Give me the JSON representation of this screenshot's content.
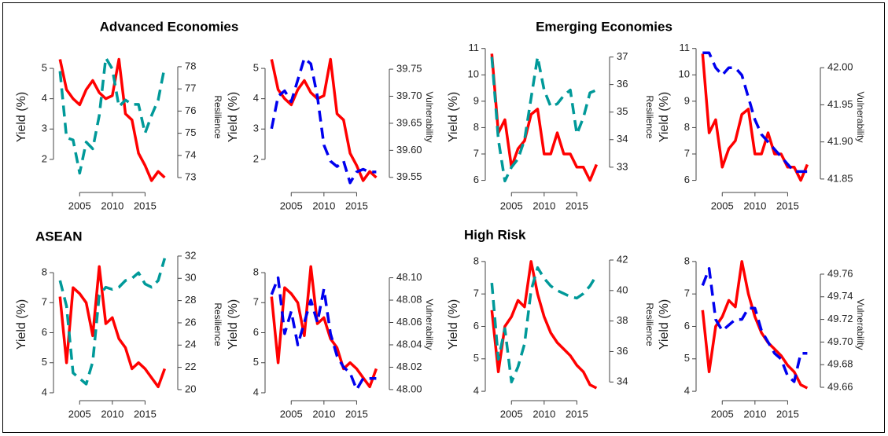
{
  "chart_data": [
    {
      "type": "line",
      "title": "Advanced Economies",
      "ylabel": "Yield (%)",
      "y2label": "Resilience",
      "x": [
        2002,
        2003,
        2004,
        2005,
        2006,
        2007,
        2008,
        2009,
        2010,
        2011,
        2012,
        2013,
        2014,
        2015,
        2016,
        2017,
        2018
      ],
      "xlim": [
        2001,
        2020
      ],
      "xticks": [
        2005,
        2010,
        2015
      ],
      "ylim": [
        0.96,
        5.83
      ],
      "yticks": [
        2,
        3,
        4,
        5
      ],
      "y2lim": [
        72.4,
        79.06
      ],
      "y2ticks": [
        73,
        74,
        75,
        76,
        77,
        78
      ],
      "series": [
        {
          "color": "#ff0000",
          "values": [
            5.3,
            4.3,
            4.0,
            3.8,
            4.3,
            4.6,
            4.2,
            4.0,
            4.1,
            5.3,
            3.5,
            3.3,
            2.2,
            1.8,
            1.3,
            1.6,
            1.4
          ]
        },
        {
          "color": "#009999",
          "axis": "y2",
          "dashed": true,
          "values": [
            77.8,
            74.8,
            74.7,
            73.2,
            74.6,
            74.3,
            75.8,
            78.4,
            77.9,
            76.2,
            76.5,
            76.3,
            76.3,
            75.0,
            75.8,
            76.5,
            78.0
          ]
        }
      ]
    },
    {
      "type": "line",
      "ylabel": "Yield (%)",
      "y2label": "Vulnerability",
      "x": [
        2002,
        2003,
        2004,
        2005,
        2006,
        2007,
        2008,
        2009,
        2010,
        2011,
        2012,
        2013,
        2014,
        2015,
        2016,
        2017,
        2018
      ],
      "xlim": [
        2001,
        2020
      ],
      "xticks": [
        2005,
        2010,
        2015
      ],
      "ylim": [
        0.96,
        5.83
      ],
      "yticks": [
        2,
        3,
        4,
        5
      ],
      "y2lim": [
        39.525,
        39.798
      ],
      "y2ticks": [
        {
          "value": 39.55,
          "label": "39.55"
        },
        {
          "value": 39.6,
          "label": "39.60"
        },
        {
          "value": 39.65,
          "label": "39.65"
        },
        {
          "value": 39.7,
          "label": "39.70"
        },
        {
          "value": 39.75,
          "label": "39.75"
        }
      ],
      "series": [
        {
          "color": "#ff0000",
          "values": [
            5.3,
            4.3,
            4.0,
            3.8,
            4.3,
            4.6,
            4.2,
            4.0,
            4.1,
            5.3,
            3.5,
            3.3,
            2.2,
            1.8,
            1.3,
            1.6,
            1.4
          ]
        },
        {
          "color": "#0000ee",
          "axis": "y2",
          "dashed": true,
          "values": [
            39.64,
            39.7,
            39.71,
            39.69,
            39.73,
            39.77,
            39.76,
            39.7,
            39.61,
            39.58,
            39.57,
            39.58,
            39.54,
            39.56,
            39.565,
            39.56,
            39.56
          ]
        }
      ]
    },
    {
      "type": "line",
      "title": "Emerging Economies",
      "ylabel": "Yield (%)",
      "y2label": "Resilience",
      "x": [
        2002,
        2003,
        2004,
        2005,
        2006,
        2007,
        2008,
        2009,
        2010,
        2011,
        2012,
        2013,
        2014,
        2015,
        2016,
        2017,
        2018
      ],
      "xlim": [
        2001,
        2020
      ],
      "xticks": [
        2005,
        2010,
        2015
      ],
      "ylim": [
        5.6,
        11.2
      ],
      "yticks": [
        6,
        7,
        8,
        9,
        10,
        11
      ],
      "y2lim": [
        32.14,
        37.5
      ],
      "y2ticks": [
        33,
        34,
        35,
        36,
        37
      ],
      "series": [
        {
          "color": "#ff0000",
          "values": [
            10.8,
            7.8,
            8.3,
            6.5,
            7.2,
            7.5,
            8.5,
            8.7,
            7.0,
            7.0,
            7.8,
            7.0,
            7.0,
            6.5,
            6.5,
            6.0,
            6.6
          ]
        },
        {
          "color": "#009999",
          "axis": "y2",
          "dashed": true,
          "values": [
            37.0,
            34.0,
            32.5,
            33.0,
            33.3,
            34.0,
            35.5,
            37.0,
            35.8,
            35.2,
            35.3,
            35.6,
            35.8,
            34.2,
            34.8,
            35.7,
            35.8
          ]
        }
      ]
    },
    {
      "type": "line",
      "ylabel": "Yield (%)",
      "y2label": "Vulnerability",
      "x": [
        2002,
        2003,
        2004,
        2005,
        2006,
        2007,
        2008,
        2009,
        2010,
        2011,
        2012,
        2013,
        2014,
        2015,
        2016,
        2017,
        2018
      ],
      "xlim": [
        2001,
        2020
      ],
      "xticks": [
        2005,
        2010,
        2015
      ],
      "ylim": [
        5.6,
        11.2
      ],
      "yticks": [
        6,
        7,
        8,
        9,
        10,
        11
      ],
      "y2lim": [
        41.834,
        42.033
      ],
      "y2ticks": [
        {
          "value": 41.85,
          "label": "41.85"
        },
        {
          "value": 41.9,
          "label": "41.90"
        },
        {
          "value": 41.95,
          "label": "41.95"
        },
        {
          "value": 42,
          "label": "42.00"
        }
      ],
      "series": [
        {
          "color": "#ff0000",
          "values": [
            10.8,
            7.8,
            8.3,
            6.5,
            7.2,
            7.5,
            8.5,
            8.7,
            7.0,
            7.0,
            7.8,
            7.0,
            7.0,
            6.5,
            6.5,
            6.0,
            6.6
          ]
        },
        {
          "color": "#0000ee",
          "axis": "y2",
          "dashed": true,
          "values": [
            42.02,
            42.02,
            42.0,
            41.99,
            42.0,
            42.0,
            41.99,
            41.96,
            41.93,
            41.91,
            41.9,
            41.89,
            41.88,
            41.87,
            41.86,
            41.86,
            41.86
          ]
        }
      ]
    },
    {
      "type": "line",
      "title": "ASEAN",
      "ylabel": "Yield (%)",
      "y2label": "Resilience",
      "x": [
        2002,
        2003,
        2004,
        2005,
        2006,
        2007,
        2008,
        2009,
        2010,
        2011,
        2012,
        2013,
        2014,
        2015,
        2016,
        2017,
        2018
      ],
      "xlim": [
        2001,
        2020
      ],
      "xticks": [
        2005,
        2010,
        2015
      ],
      "ylim": [
        3.79,
        8.76
      ],
      "yticks": [
        4,
        5,
        6,
        7,
        8
      ],
      "y2lim": [
        19.15,
        32.56
      ],
      "y2ticks": [
        20,
        22,
        24,
        26,
        28,
        30,
        32
      ],
      "series": [
        {
          "color": "#ff0000",
          "values": [
            7.2,
            5.0,
            7.5,
            7.3,
            7.0,
            5.9,
            8.2,
            6.3,
            6.5,
            5.8,
            5.5,
            4.8,
            5.0,
            4.8,
            4.5,
            4.2,
            4.8
          ]
        },
        {
          "color": "#009999",
          "axis": "y2",
          "dashed": true,
          "values": [
            29.8,
            27.5,
            21.5,
            21.0,
            20.5,
            22.5,
            28.5,
            29.2,
            29.0,
            29.2,
            29.8,
            30.0,
            30.5,
            29.5,
            29.2,
            29.8,
            31.8
          ]
        }
      ]
    },
    {
      "type": "line",
      "ylabel": "Yield (%)",
      "y2label": "Vulnerability",
      "x": [
        2002,
        2003,
        2004,
        2005,
        2006,
        2007,
        2008,
        2009,
        2010,
        2011,
        2012,
        2013,
        2014,
        2015,
        2016,
        2017,
        2018
      ],
      "xlim": [
        2001,
        2020
      ],
      "xticks": [
        2005,
        2010,
        2015
      ],
      "ylim": [
        3.79,
        8.76
      ],
      "yticks": [
        4,
        5,
        6,
        7,
        8
      ],
      "y2lim": [
        47.9915,
        48.125
      ],
      "y2ticks": [
        {
          "value": 48,
          "label": "48.00"
        },
        {
          "value": 48.02,
          "label": "48.02"
        },
        {
          "value": 48.04,
          "label": "48.04"
        },
        {
          "value": 48.06,
          "label": "48.06"
        },
        {
          "value": 48.08,
          "label": "48.08"
        },
        {
          "value": 48.1,
          "label": "48.10"
        }
      ],
      "series": [
        {
          "color": "#ff0000",
          "values": [
            7.2,
            5.0,
            7.5,
            7.3,
            7.0,
            5.9,
            8.2,
            6.3,
            6.5,
            5.8,
            5.5,
            4.8,
            5.0,
            4.8,
            4.5,
            4.2,
            4.8
          ]
        },
        {
          "color": "#0000ee",
          "axis": "y2",
          "dashed": true,
          "values": [
            48.085,
            48.1,
            48.05,
            48.07,
            48.04,
            48.06,
            48.08,
            48.06,
            48.09,
            48.05,
            48.03,
            48.02,
            48.015,
            48.0,
            48.01,
            48.01,
            48.01
          ]
        }
      ]
    },
    {
      "type": "line",
      "title": "High Risk",
      "ylabel": "Yield (%)",
      "y2label": "Resilience",
      "x": [
        2002,
        2003,
        2004,
        2005,
        2006,
        2007,
        2008,
        2009,
        2010,
        2011,
        2012,
        2013,
        2014,
        2015,
        2016,
        2017,
        2018
      ],
      "xlim": [
        2001,
        2020
      ],
      "xticks": [
        2005,
        2010,
        2015
      ],
      "ylim": [
        3.76,
        8.36
      ],
      "yticks": [
        4,
        5,
        6,
        7,
        8
      ],
      "y2lim": [
        32.88,
        42.67
      ],
      "y2ticks": [
        34,
        36,
        38,
        40,
        42
      ],
      "series": [
        {
          "color": "#ff0000",
          "values": [
            6.5,
            4.6,
            6.0,
            6.3,
            6.8,
            6.6,
            8.0,
            7.0,
            6.3,
            5.8,
            5.5,
            5.3,
            5.1,
            4.8,
            4.6,
            4.2,
            4.1
          ]
        },
        {
          "color": "#009999",
          "axis": "y2",
          "dashed": true,
          "values": [
            40.5,
            35.5,
            37.5,
            34.0,
            35.0,
            36.5,
            40.0,
            41.5,
            40.8,
            40.3,
            40.0,
            39.8,
            39.6,
            39.5,
            39.8,
            40.3,
            41.0
          ]
        }
      ]
    },
    {
      "type": "line",
      "ylabel": "Yield (%)",
      "y2label": "Vulnerability",
      "x": [
        2002,
        2003,
        2004,
        2005,
        2006,
        2007,
        2008,
        2009,
        2010,
        2011,
        2012,
        2013,
        2014,
        2015,
        2016,
        2017,
        2018
      ],
      "xlim": [
        2001,
        2020
      ],
      "xticks": [
        2005,
        2010,
        2015
      ],
      "ylim": [
        3.76,
        8.36
      ],
      "yticks": [
        4,
        5,
        6,
        7,
        8
      ],
      "y2lim": [
        49.6496,
        49.7815
      ],
      "y2ticks": [
        {
          "value": 49.66,
          "label": "49.66"
        },
        {
          "value": 49.68,
          "label": "49.68"
        },
        {
          "value": 49.7,
          "label": "49.70"
        },
        {
          "value": 49.72,
          "label": "49.72"
        },
        {
          "value": 49.74,
          "label": "49.74"
        },
        {
          "value": 49.76,
          "label": "49.76"
        }
      ],
      "series": [
        {
          "color": "#ff0000",
          "values": [
            6.5,
            4.6,
            6.0,
            6.3,
            6.8,
            6.6,
            8.0,
            7.0,
            6.3,
            5.8,
            5.5,
            5.3,
            5.1,
            4.8,
            4.6,
            4.2,
            4.1
          ]
        },
        {
          "color": "#0000ee",
          "axis": "y2",
          "dashed": true,
          "values": [
            49.75,
            49.765,
            49.72,
            49.71,
            49.715,
            49.72,
            49.72,
            49.73,
            49.73,
            49.71,
            49.7,
            49.69,
            49.685,
            49.67,
            49.665,
            49.69,
            49.69
          ]
        }
      ]
    }
  ]
}
